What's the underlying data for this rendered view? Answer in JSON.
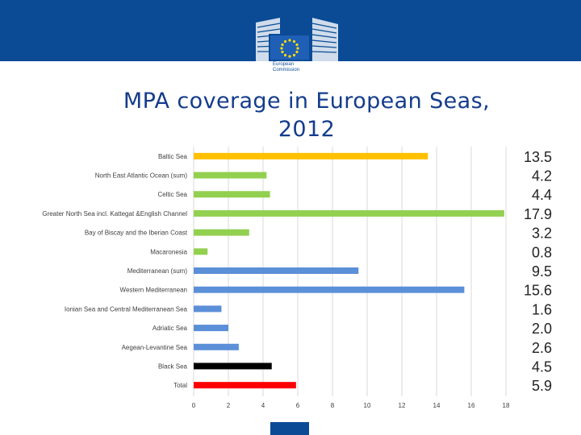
{
  "header": {
    "logo_text_line1": "European",
    "logo_text_line2": "Commission"
  },
  "slide": {
    "title_line1": "MPA coverage in European Seas,",
    "title_line2": "2012"
  },
  "colors": {
    "header": "#0b4b95",
    "title": "#143c8c",
    "baltic": "#ffc000",
    "atlantic": "#92d050",
    "mediterranean": "#5b8fd8",
    "black_sea": "#000000",
    "total": "#ff0000"
  },
  "chart_data": {
    "type": "bar",
    "orientation": "horizontal",
    "categories": [
      "Baltic Sea",
      "North East Atlantic Ocean (sum)",
      "Celtic Sea",
      "Greater North Sea incl. Kattegat &English Channel",
      "Bay of Biscay and the Iberian Coast",
      "Macaronesia",
      "Mediterranean (sum)",
      "Western Mediterranean",
      "Ionian Sea and Central Mediterranean Sea",
      "Adriatic Sea",
      "Aegean-Levantine Sea",
      "Black Sea",
      "Total"
    ],
    "values": [
      13.5,
      4.2,
      4.4,
      17.9,
      3.2,
      0.8,
      9.5,
      15.6,
      1.6,
      2.0,
      2.6,
      4.5,
      5.9
    ],
    "value_labels": [
      "13.5",
      "4.2",
      "4.4",
      "17.9",
      "3.2",
      "0.8",
      "9.5",
      "15.6",
      "1.6",
      "2.0",
      "2.6",
      "4.5",
      "5.9"
    ],
    "bar_colors": [
      "#ffc000",
      "#92d050",
      "#92d050",
      "#92d050",
      "#92d050",
      "#92d050",
      "#5b8fd8",
      "#5b8fd8",
      "#5b8fd8",
      "#5b8fd8",
      "#5b8fd8",
      "#000000",
      "#ff0000"
    ],
    "xlim": [
      0,
      18
    ],
    "xticks": [
      0,
      2,
      4,
      6,
      8,
      10,
      12,
      14,
      16,
      18
    ],
    "grid": true,
    "legend": "none"
  }
}
